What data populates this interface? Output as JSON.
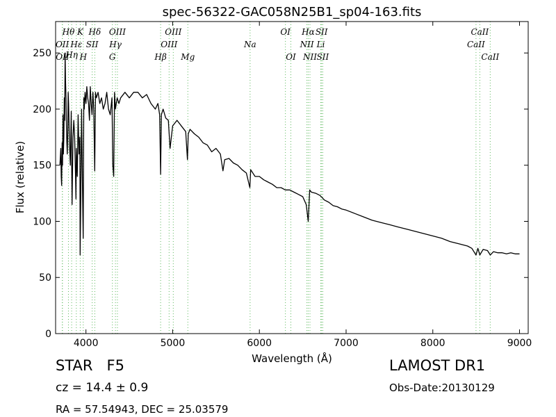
{
  "chart_data": {
    "type": "line",
    "title": "spec-56322-GAC058N25B1_sp04-163.fits",
    "xlabel": "Wavelength (Å)",
    "ylabel": "Flux (relative)",
    "xlim": [
      3650,
      9100
    ],
    "ylim": [
      0,
      278
    ],
    "xticks": [
      4000,
      5000,
      6000,
      7000,
      8000,
      9000
    ],
    "yticks": [
      0,
      50,
      100,
      150,
      200,
      250
    ],
    "series": [
      {
        "color": "#000000",
        "x": [
          3700,
          3710,
          3715,
          3720,
          3725,
          3730,
          3735,
          3740,
          3745,
          3750,
          3755,
          3760,
          3765,
          3770,
          3775,
          3780,
          3785,
          3790,
          3795,
          3800,
          3810,
          3815,
          3820,
          3830,
          3840,
          3850,
          3860,
          3870,
          3880,
          3885,
          3890,
          3900,
          3910,
          3920,
          3930,
          3933,
          3940,
          3950,
          3960,
          3968,
          3975,
          3980,
          3990,
          4000,
          4010,
          4020,
          4030,
          4040,
          4050,
          4060,
          4070,
          4080,
          4090,
          4101,
          4110,
          4120,
          4140,
          4160,
          4180,
          4200,
          4220,
          4240,
          4260,
          4280,
          4300,
          4310,
          4320,
          4330,
          4340,
          4350,
          4360,
          4380,
          4400,
          4450,
          4500,
          4550,
          4600,
          4650,
          4700,
          4750,
          4800,
          4830,
          4850,
          4861,
          4870,
          4890,
          4920,
          4950,
          4970,
          5000,
          5050,
          5100,
          5150,
          5170,
          5180,
          5200,
          5250,
          5300,
          5350,
          5400,
          5450,
          5500,
          5550,
          5580,
          5600,
          5650,
          5700,
          5750,
          5800,
          5850,
          5890,
          5900,
          5950,
          6000,
          6050,
          6100,
          6150,
          6200,
          6250,
          6300,
          6350,
          6400,
          6450,
          6500,
          6540,
          6563,
          6580,
          6600,
          6650,
          6700,
          6750,
          6800,
          6850,
          6900,
          6950,
          7000,
          7100,
          7200,
          7300,
          7400,
          7500,
          7600,
          7700,
          7800,
          7900,
          8000,
          8100,
          8200,
          8300,
          8400,
          8450,
          8498,
          8520,
          8542,
          8580,
          8630,
          8662,
          8700,
          8750,
          8800,
          8850,
          8900,
          8950,
          9000
        ],
        "y": [
          150,
          165,
          140,
          132,
          170,
          150,
          195,
          160,
          175,
          210,
          190,
          250,
          225,
          210,
          185,
          170,
          160,
          180,
          215,
          205,
          168,
          160,
          150,
          198,
          115,
          175,
          190,
          175,
          140,
          120,
          165,
          140,
          195,
          160,
          175,
          70,
          120,
          200,
          130,
          85,
          210,
          200,
          215,
          205,
          220,
          210,
          205,
          190,
          220,
          205,
          195,
          215,
          200,
          145,
          215,
          210,
          215,
          205,
          210,
          200,
          205,
          215,
          200,
          195,
          210,
          150,
          140,
          215,
          200,
          205,
          210,
          205,
          210,
          215,
          210,
          215,
          215,
          210,
          213,
          205,
          200,
          205,
          195,
          142,
          195,
          200,
          192,
          190,
          165,
          185,
          190,
          185,
          180,
          155,
          178,
          182,
          178,
          175,
          170,
          168,
          162,
          165,
          160,
          145,
          155,
          156,
          152,
          150,
          146,
          143,
          130,
          146,
          140,
          140,
          137,
          135,
          133,
          130,
          130,
          128,
          128,
          126,
          124,
          122,
          115,
          100,
          128,
          126,
          125,
          123,
          119,
          117,
          114,
          113,
          111,
          110,
          107,
          104,
          101,
          99,
          97,
          95,
          93,
          91,
          89,
          87,
          85,
          82,
          80,
          78,
          76,
          70,
          76,
          70,
          75,
          74,
          70,
          73,
          72,
          72,
          71,
          72,
          71,
          71
        ]
      }
    ],
    "spectral_lines": [
      {
        "label": "Hθ",
        "wavelength": 3798,
        "row": 0
      },
      {
        "label": "K",
        "wavelength": 3934,
        "row": 0
      },
      {
        "label": "Hδ",
        "wavelength": 4102,
        "row": 0
      },
      {
        "label": "OIII",
        "wavelength": 4363,
        "row": 0
      },
      {
        "label": "OIII",
        "wavelength": 5007,
        "row": 0
      },
      {
        "label": "OI",
        "wavelength": 6300,
        "row": 0
      },
      {
        "label": "Hα",
        "wavelength": 6563,
        "row": 0
      },
      {
        "label": "SII",
        "wavelength": 6717,
        "row": 0
      },
      {
        "label": "CaII",
        "wavelength": 8542,
        "row": 0
      },
      {
        "label": "OII",
        "wavelength": 3727,
        "row": 1
      },
      {
        "label": "Hε",
        "wavelength": 3889,
        "row": 1
      },
      {
        "label": "SII",
        "wavelength": 4072,
        "row": 1
      },
      {
        "label": "Hγ",
        "wavelength": 4340,
        "row": 1
      },
      {
        "label": "OIII",
        "wavelength": 4959,
        "row": 1
      },
      {
        "label": "Na",
        "wavelength": 5893,
        "row": 1
      },
      {
        "label": "NII",
        "wavelength": 6548,
        "row": 1
      },
      {
        "label": "Li",
        "wavelength": 6708,
        "row": 1
      },
      {
        "label": "CaII",
        "wavelength": 8498,
        "row": 1
      },
      {
        "label": "Hη",
        "wavelength": 3835,
        "row": 2
      },
      {
        "label": "OII",
        "wavelength": 3729,
        "row": 3
      },
      {
        "label": "H",
        "wavelength": 3969,
        "row": 3
      },
      {
        "label": "G",
        "wavelength": 4305,
        "row": 3
      },
      {
        "label": "Hβ",
        "wavelength": 4861,
        "row": 3
      },
      {
        "label": "Mg",
        "wavelength": 5175,
        "row": 3
      },
      {
        "label": "OI",
        "wavelength": 6363,
        "row": 3
      },
      {
        "label": "NII",
        "wavelength": 6583,
        "row": 3
      },
      {
        "label": "SII",
        "wavelength": 6731,
        "row": 3
      },
      {
        "label": "CaII",
        "wavelength": 8662,
        "row": 3
      }
    ],
    "grid": false,
    "line_marker_color": "#5cb85c"
  },
  "info": {
    "class_label": "STAR",
    "subclass": "F5",
    "survey": "LAMOST DR1",
    "redshift": "cz = 14.4  ± 0.9",
    "obs_date": "Obs-Date:20130129",
    "coords": "RA = 57.54943, DEC = 25.03579"
  }
}
